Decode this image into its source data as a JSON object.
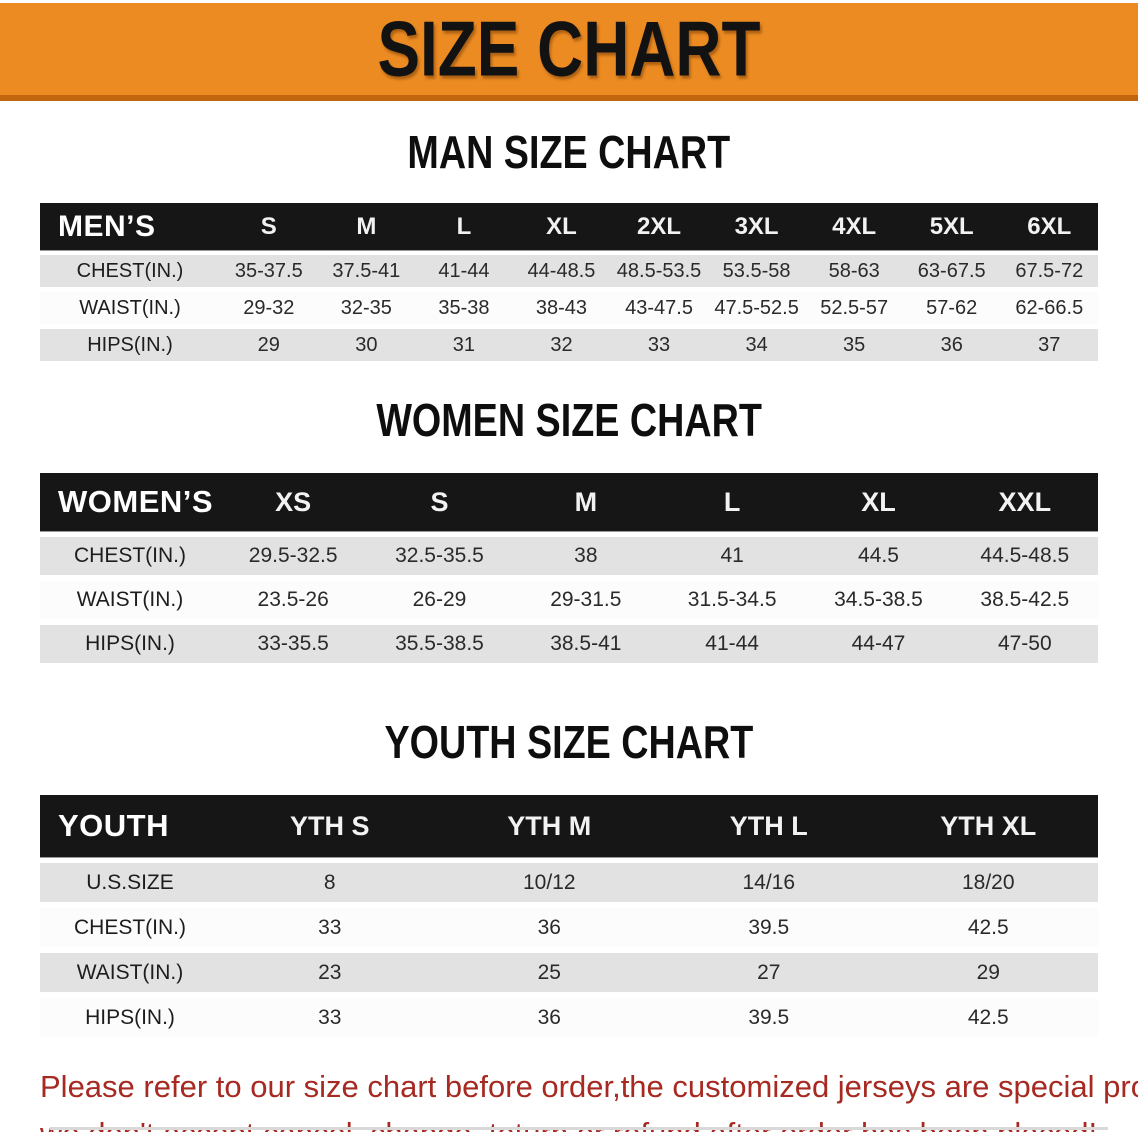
{
  "banner": {
    "title": "SIZE CHART",
    "bg_color": "#EB8B22",
    "border_color": "#C1660F"
  },
  "colors": {
    "table_header_bg": "#161616",
    "row_gray": "#E2E2E2",
    "row_white": "#FCFCFC",
    "disclaimer_red": "#A62A22"
  },
  "sections": [
    {
      "heading": "MAN SIZE CHART",
      "table": {
        "label": "MEN’S",
        "columns": [
          "S",
          "M",
          "L",
          "XL",
          "2XL",
          "3XL",
          "4XL",
          "5XL",
          "6XL"
        ],
        "rows": [
          {
            "label": "CHEST(IN.)",
            "values": [
              "35-37.5",
              "37.5-41",
              "41-44",
              "44-48.5",
              "48.5-53.5",
              "53.5-58",
              "58-63",
              "63-67.5",
              "67.5-72"
            ]
          },
          {
            "label": "WAIST(IN.)",
            "values": [
              "29-32",
              "32-35",
              "35-38",
              "38-43",
              "43-47.5",
              "47.5-52.5",
              "52.5-57",
              "57-62",
              "62-66.5"
            ]
          },
          {
            "label": "HIPS(IN.)",
            "values": [
              "29",
              "30",
              "31",
              "32",
              "33",
              "34",
              "35",
              "36",
              "37"
            ]
          }
        ]
      }
    },
    {
      "heading": "WOMEN SIZE CHART",
      "table": {
        "label": "WOMEN’S",
        "columns": [
          "XS",
          "S",
          "M",
          "L",
          "XL",
          "XXL"
        ],
        "rows": [
          {
            "label": "CHEST(IN.)",
            "values": [
              "29.5-32.5",
              "32.5-35.5",
              "38",
              "41",
              "44.5",
              "44.5-48.5"
            ]
          },
          {
            "label": "WAIST(IN.)",
            "values": [
              "23.5-26",
              "26-29",
              "29-31.5",
              "31.5-34.5",
              "34.5-38.5",
              "38.5-42.5"
            ]
          },
          {
            "label": "HIPS(IN.)",
            "values": [
              "33-35.5",
              "35.5-38.5",
              "38.5-41",
              "41-44",
              "44-47",
              "47-50"
            ]
          }
        ]
      }
    },
    {
      "heading": "YOUTH SIZE CHART",
      "table": {
        "label": "YOUTH",
        "columns": [
          "YTH S",
          "YTH M",
          "YTH L",
          "YTH XL"
        ],
        "rows": [
          {
            "label": "U.S.SIZE",
            "values": [
              "8",
              "10/12",
              "14/16",
              "18/20"
            ]
          },
          {
            "label": "CHEST(IN.)",
            "values": [
              "33",
              "36",
              "39.5",
              "42.5"
            ]
          },
          {
            "label": "WAIST(IN.)",
            "values": [
              "23",
              "25",
              "27",
              "29"
            ]
          },
          {
            "label": "HIPS(IN.)",
            "values": [
              "33",
              "36",
              "39.5",
              "42.5"
            ]
          }
        ]
      }
    }
  ],
  "disclaimer": {
    "line1": "Please refer to our size chart before order,the customized jerseys are special products,",
    "line2": "we don't accept cancel, change, teturn or refund after order has been placed!"
  }
}
